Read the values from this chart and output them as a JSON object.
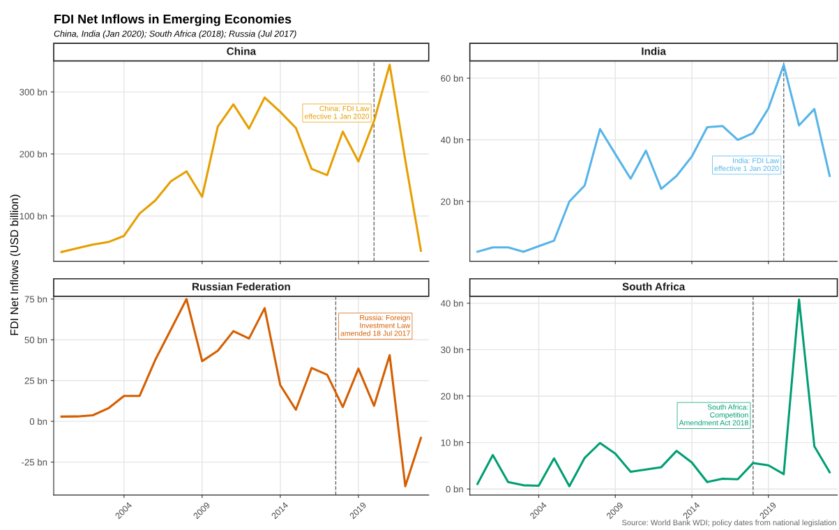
{
  "chart_data": [
    {
      "type": "line",
      "title": "China",
      "x": [
        2000,
        2001,
        2002,
        2003,
        2004,
        2005,
        2006,
        2007,
        2008,
        2009,
        2010,
        2011,
        2012,
        2013,
        2014,
        2015,
        2016,
        2017,
        2018,
        2019,
        2020,
        2021,
        2022,
        2023
      ],
      "series": [
        {
          "color": "#e69f00",
          "values": [
            42,
            48,
            54,
            58,
            68,
            104,
            125,
            156,
            172,
            131,
            244,
            280,
            241,
            291,
            268,
            242,
            176,
            166,
            236,
            188,
            253,
            344,
            190,
            44
          ]
        }
      ],
      "xlim": [
        1999.5,
        2023.5
      ],
      "xticks": [
        2004,
        2009,
        2014,
        2019
      ],
      "ylim": [
        27,
        350
      ],
      "yticks": [
        {
          "value": 100,
          "label": "100 bn"
        },
        {
          "value": 200,
          "label": "200 bn"
        },
        {
          "value": 300,
          "label": "300 bn"
        }
      ],
      "tick_labels": "y",
      "grid": true,
      "line_style": "solid",
      "marker": "none",
      "ref_lines": [
        {
          "axis": "x",
          "value": 2020,
          "label": "China: FDI Law\neffective 1 Jan 2020",
          "color": "#666666",
          "line_style": "dashed"
        }
      ],
      "annotations": [
        "FDI Net Inflows in Emerging Economies",
        "China, India (Jan 2020); South Africa (2018); Russia (Jul 2017)"
      ],
      "ylabel": "FDI Net Inflows (USD billion)"
    },
    {
      "type": "line",
      "title": "India",
      "x": [
        2000,
        2001,
        2002,
        2003,
        2004,
        2005,
        2006,
        2007,
        2008,
        2009,
        2010,
        2011,
        2012,
        2013,
        2014,
        2015,
        2016,
        2017,
        2018,
        2019,
        2020,
        2021,
        2022,
        2023
      ],
      "series": [
        {
          "color": "#56b4e9",
          "values": [
            3.7,
            5.1,
            5.1,
            3.7,
            5.5,
            7.3,
            20,
            25.2,
            43.5,
            35.4,
            27.4,
            36.5,
            24.1,
            28.3,
            34.6,
            44.1,
            44.5,
            40,
            42.2,
            50.2,
            64.3,
            44.7,
            50,
            28.3
          ]
        }
      ],
      "xlim": [
        1999.5,
        2023.5
      ],
      "xticks": [
        2004,
        2009,
        2014,
        2019
      ],
      "ylim": [
        0.6,
        65.6
      ],
      "yticks": [
        {
          "value": 20,
          "label": "20 bn"
        },
        {
          "value": 40,
          "label": "40 bn"
        },
        {
          "value": 60,
          "label": "60 bn"
        }
      ],
      "tick_labels": "y",
      "grid": true,
      "line_style": "solid",
      "marker": "none",
      "ref_lines": [
        {
          "axis": "x",
          "value": 2020,
          "label": "India: FDI Law\neffective 1 Jan 2020",
          "color": "#666666",
          "line_style": "dashed"
        }
      ]
    },
    {
      "type": "line",
      "title": "Russian Federation",
      "x": [
        2000,
        2001,
        2002,
        2003,
        2004,
        2005,
        2006,
        2007,
        2008,
        2009,
        2010,
        2011,
        2012,
        2013,
        2014,
        2015,
        2016,
        2017,
        2018,
        2019,
        2020,
        2021,
        2022,
        2023
      ],
      "series": [
        {
          "color": "#d55e00",
          "values": [
            2.9,
            3.0,
            3.7,
            8.0,
            15.6,
            15.6,
            37.7,
            56.3,
            75,
            36.9,
            43.3,
            55.3,
            50.8,
            69.4,
            22.2,
            7.1,
            32.7,
            28.6,
            8.8,
            32.3,
            9.5,
            40.6,
            -39.8,
            -10.2
          ]
        }
      ],
      "xlim": [
        1999.5,
        2023.5
      ],
      "xticks": [
        2004,
        2009,
        2014,
        2019
      ],
      "ylim": [
        -45.2,
        76.7
      ],
      "yticks": [
        {
          "value": -25,
          "label": "-25 bn"
        },
        {
          "value": 0,
          "label": "0 bn"
        },
        {
          "value": 25,
          "label": "25 bn"
        },
        {
          "value": 50,
          "label": "50 bn"
        },
        {
          "value": 75,
          "label": "75 bn"
        }
      ],
      "grid": true,
      "line_style": "solid",
      "marker": "none",
      "ref_lines": [
        {
          "axis": "x",
          "value": 2017.55,
          "label": "Russia: Foreign\nInvestment Law\namended 18 Jul 2017",
          "color": "#666666",
          "line_style": "dashed"
        }
      ]
    },
    {
      "type": "line",
      "title": "South Africa",
      "x": [
        2000,
        2001,
        2002,
        2003,
        2004,
        2005,
        2006,
        2007,
        2008,
        2009,
        2010,
        2011,
        2012,
        2013,
        2014,
        2015,
        2016,
        2017,
        2018,
        2019,
        2020,
        2021,
        2022,
        2023
      ],
      "series": [
        {
          "color": "#009e73",
          "values": [
            1.1,
            7.3,
            1.5,
            0.8,
            0.7,
            6.6,
            0.6,
            6.7,
            9.9,
            7.6,
            3.7,
            4.2,
            4.7,
            8.2,
            5.7,
            1.5,
            2.2,
            2.1,
            5.6,
            5.1,
            3.2,
            40.8,
            9.2,
            3.6
          ]
        }
      ],
      "xlim": [
        1999.5,
        2023.5
      ],
      "xticks": [
        2004,
        2009,
        2014,
        2019
      ],
      "ylim": [
        -1.3,
        41.5
      ],
      "yticks": [
        {
          "value": 0,
          "label": "0 bn"
        },
        {
          "value": 10,
          "label": "10 bn"
        },
        {
          "value": 20,
          "label": "20 bn"
        },
        {
          "value": 30,
          "label": "30 bn"
        },
        {
          "value": 40,
          "label": "40 bn"
        }
      ],
      "grid": true,
      "line_style": "solid",
      "marker": "none",
      "ref_lines": [
        {
          "axis": "x",
          "value": 2018,
          "label": "South Africa:\nCompetition\nAmendment Act 2018",
          "color": "#666666",
          "line_style": "dashed"
        }
      ],
      "annotations": [
        "Source: World Bank WDI; policy dates from national legislation"
      ]
    }
  ]
}
